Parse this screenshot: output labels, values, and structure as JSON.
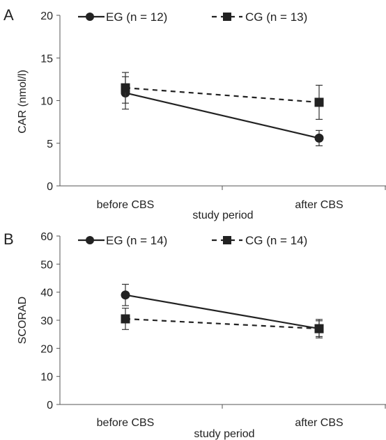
{
  "chart_data": [
    {
      "type": "line",
      "panel": "A",
      "ylabel": "CAR (nmol/l)",
      "xlabel": "study period",
      "categories": [
        "before CBS",
        "after CBS"
      ],
      "ylim": [
        0,
        20
      ],
      "yticks": [
        "0",
        "5",
        "10",
        "15",
        "20"
      ],
      "series": [
        {
          "name": "EG  (n = 12)",
          "values": [
            10.9,
            5.6
          ],
          "err": [
            1.9,
            0.9
          ],
          "marker": "circle",
          "dash": "solid"
        },
        {
          "name": "CG (n = 13)",
          "values": [
            11.5,
            9.8
          ],
          "err": [
            1.8,
            2.0
          ],
          "marker": "square",
          "dash": "dashed"
        }
      ]
    },
    {
      "type": "line",
      "panel": "B",
      "ylabel": "SCORAD",
      "xlabel": "study period",
      "categories": [
        "before CBS",
        "after CBS"
      ],
      "ylim": [
        0,
        60
      ],
      "yticks": [
        "0",
        "10",
        "20",
        "30",
        "40",
        "50",
        "60"
      ],
      "series": [
        {
          "name": "EG  (n = 14)",
          "values": [
            39,
            27
          ],
          "err": [
            3.8,
            2.8
          ],
          "marker": "circle",
          "dash": "solid"
        },
        {
          "name": "CG (n = 14)",
          "values": [
            30.5,
            27
          ],
          "err": [
            3.8,
            3.3
          ],
          "marker": "square",
          "dash": "dashed"
        }
      ]
    }
  ]
}
